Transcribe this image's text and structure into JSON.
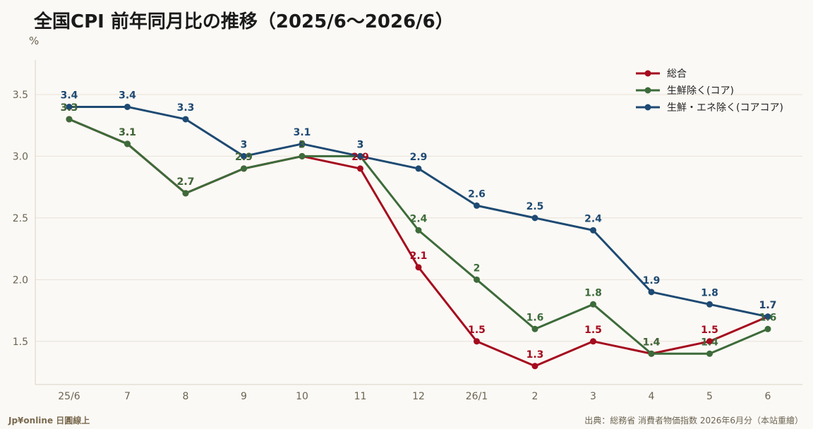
{
  "title": "全国CPI 前年同月比の推移（2025/6〜2026/6）",
  "brand": "Jp¥online 日圓線上",
  "source": "出典：総務省 消費者物価指数 2026年6月分（本站重繪）",
  "chart_data": {
    "type": "line",
    "title": "全国CPI 前年同月比の推移（2025/6〜2026/6）",
    "ylabel": "%",
    "categories": [
      "25/6",
      "7",
      "8",
      "9",
      "10",
      "11",
      "12",
      "26/1",
      "2",
      "3",
      "4",
      "5",
      "6"
    ],
    "yticks": [
      "1.5",
      "2.0",
      "2.5",
      "3.0",
      "3.5"
    ],
    "ylim": [
      1.15,
      3.78
    ],
    "grid": "horizontal",
    "legend_position": "top-right",
    "series": [
      {
        "name": "総合",
        "color": "#a50b1e",
        "values": [
          3.3,
          3.1,
          2.7,
          2.9,
          3.0,
          2.9,
          2.1,
          1.5,
          1.3,
          1.5,
          1.4,
          1.5,
          1.7
        ],
        "labels": [
          "3.3",
          "3.1",
          "2.7",
          "2.9",
          "3",
          "2.9",
          "2.1",
          "1.5",
          "1.3",
          "1.5",
          "1.4",
          "1.5",
          "1.7"
        ]
      },
      {
        "name": "生鮮除く(コア)",
        "color": "#3d6b3a",
        "values": [
          3.3,
          3.1,
          2.7,
          2.9,
          3.0,
          3.0,
          2.4,
          2.0,
          1.6,
          1.8,
          1.4,
          1.4,
          1.6
        ],
        "labels": [
          "3.3",
          "3.1",
          "2.7",
          "2.9",
          "3",
          "3",
          "2.4",
          "2",
          "1.6",
          "1.8",
          "1.4",
          "1.4",
          "1.6"
        ]
      },
      {
        "name": "生鮮・エネ除く(コアコア)",
        "color": "#1e4a73",
        "values": [
          3.4,
          3.4,
          3.3,
          3.0,
          3.1,
          3.0,
          2.9,
          2.6,
          2.5,
          2.4,
          1.9,
          1.8,
          1.7
        ],
        "labels": [
          "3.4",
          "3.4",
          "3.3",
          "3",
          "3.1",
          "3",
          "2.9",
          "2.6",
          "2.5",
          "2.4",
          "1.9",
          "1.8",
          "1.7"
        ]
      }
    ]
  }
}
